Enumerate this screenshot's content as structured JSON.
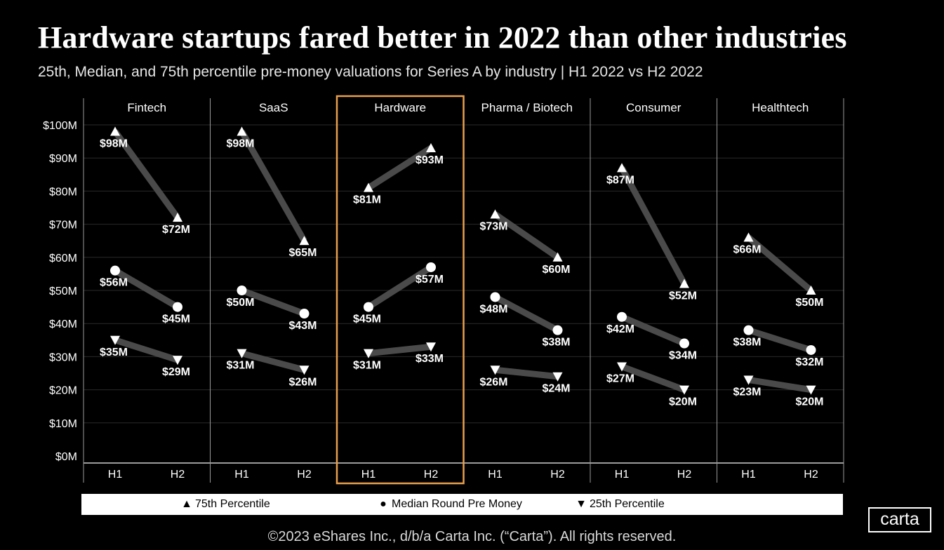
{
  "title": "Hardware startups fared better in 2022 than other industries",
  "subtitle": "25th, Median, and 75th percentile pre-money valuations for Series A by industry | H1 2022 vs H2 2022",
  "chart_data": {
    "type": "line",
    "panels": [
      "Fintech",
      "SaaS",
      "Hardware",
      "Pharma / Biotech",
      "Consumer",
      "Healthtech"
    ],
    "x": [
      "H1",
      "H2"
    ],
    "y_ticks": [
      "$0M",
      "$10M",
      "$20M",
      "$30M",
      "$40M",
      "$50M",
      "$60M",
      "$70M",
      "$80M",
      "$90M",
      "$100M"
    ],
    "ylim": [
      0,
      100
    ],
    "grid": true,
    "highlighted_panel": "Hardware",
    "highlight_color": "#e8a04c",
    "series": [
      {
        "name": "75th Percentile",
        "marker": "triangle-up",
        "values": [
          [
            98,
            72
          ],
          [
            98,
            65
          ],
          [
            81,
            93
          ],
          [
            73,
            60
          ],
          [
            87,
            52
          ],
          [
            66,
            50
          ]
        ],
        "labels": [
          [
            "$98M",
            "$72M"
          ],
          [
            "$98M",
            "$65M"
          ],
          [
            "$81M",
            "$93M"
          ],
          [
            "$73M",
            "$60M"
          ],
          [
            "$87M",
            "$52M"
          ],
          [
            "$66M",
            "$50M"
          ]
        ]
      },
      {
        "name": "Median Round Pre Money",
        "marker": "circle",
        "values": [
          [
            56,
            45
          ],
          [
            50,
            43
          ],
          [
            45,
            57
          ],
          [
            48,
            38
          ],
          [
            42,
            34
          ],
          [
            38,
            32
          ]
        ],
        "labels": [
          [
            "$56M",
            "$45M"
          ],
          [
            "$50M",
            "$43M"
          ],
          [
            "$45M",
            "$57M"
          ],
          [
            "$48M",
            "$38M"
          ],
          [
            "$42M",
            "$34M"
          ],
          [
            "$38M",
            "$32M"
          ]
        ]
      },
      {
        "name": "25th Percentile",
        "marker": "triangle-down",
        "values": [
          [
            35,
            29
          ],
          [
            31,
            26
          ],
          [
            31,
            33
          ],
          [
            26,
            24
          ],
          [
            27,
            20
          ],
          [
            23,
            20
          ]
        ],
        "labels": [
          [
            "$35M",
            "$29M"
          ],
          [
            "$31M",
            "$26M"
          ],
          [
            "$31M",
            "$33M"
          ],
          [
            "$26M",
            "$24M"
          ],
          [
            "$27M",
            "$20M"
          ],
          [
            "$23M",
            "$20M"
          ]
        ]
      }
    ],
    "legend_placement": "bottom"
  },
  "legend": {
    "items": [
      {
        "symbol": "▲",
        "label": "75th Percentile"
      },
      {
        "symbol": "●",
        "label": "Median Round Pre Money"
      },
      {
        "symbol": "▼",
        "label": "25th Percentile"
      }
    ]
  },
  "logo": "carta",
  "footer": "©2023 eShares Inc., d/b/a Carta Inc. (“Carta”). All rights reserved."
}
